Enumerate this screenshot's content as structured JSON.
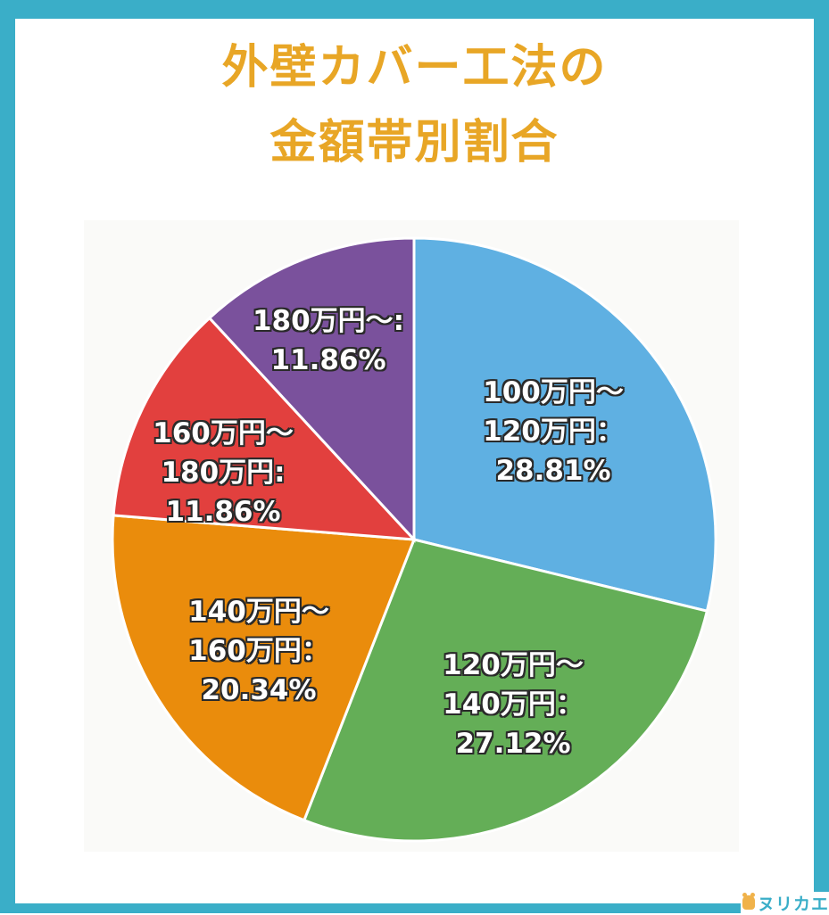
{
  "title": {
    "line1": "外壁カバー工法の",
    "line2": "金額帯別割合",
    "color": "#e8a626"
  },
  "frame_color": "#3aaec8",
  "logo": {
    "text": "ヌリカエ",
    "icon": "frog-mascot-icon"
  },
  "labels": [
    {
      "line1": "100万円〜",
      "line2": "120万円：",
      "line3": "28.81%"
    },
    {
      "line1": "120万円〜",
      "line2": "140万円：",
      "line3": "27.12%"
    },
    {
      "line1": "140万円〜",
      "line2": "160万円：",
      "line3": "20.34%"
    },
    {
      "line1": "160万円〜",
      "line2": "180万円:",
      "line3": "11.86%"
    },
    {
      "line1": "180万円〜:",
      "line2": "11.86%"
    }
  ],
  "chart_data": {
    "type": "pie",
    "title": "外壁カバー工法の金額帯別割合",
    "categories": [
      "100万円〜120万円",
      "120万円〜140万円",
      "140万円〜160万円",
      "160万円〜180万円",
      "180万円〜"
    ],
    "values": [
      28.81,
      27.12,
      20.34,
      11.86,
      11.86
    ],
    "unit": "%",
    "colors": [
      "#5fb0e2",
      "#64ae57",
      "#ea8c0c",
      "#e2403e",
      "#7a519c"
    ],
    "start_angle": "12 o'clock",
    "direction": "clockwise",
    "legend": "none (labels inside slices)"
  }
}
